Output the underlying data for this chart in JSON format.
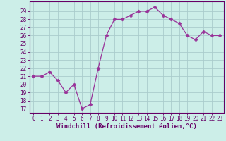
{
  "x": [
    0,
    1,
    2,
    3,
    4,
    5,
    6,
    7,
    8,
    9,
    10,
    11,
    12,
    13,
    14,
    15,
    16,
    17,
    18,
    19,
    20,
    21,
    22,
    23
  ],
  "y": [
    21,
    21,
    21.5,
    20.5,
    19,
    20,
    17,
    17.5,
    22,
    26,
    28,
    28,
    28.5,
    29,
    29,
    29.5,
    28.5,
    28,
    27.5,
    26,
    25.5,
    26.5,
    26,
    26
  ],
  "line_color": "#993399",
  "marker": "D",
  "marker_size": 2.5,
  "bg_color": "#cceee8",
  "grid_color": "#aacccc",
  "xlabel": "Windchill (Refroidissement éolien,°C)",
  "xlabel_fontsize": 6.5,
  "yticks": [
    17,
    18,
    19,
    20,
    21,
    22,
    23,
    24,
    25,
    26,
    27,
    28,
    29
  ],
  "xticks": [
    0,
    1,
    2,
    3,
    4,
    5,
    6,
    7,
    8,
    9,
    10,
    11,
    12,
    13,
    14,
    15,
    16,
    17,
    18,
    19,
    20,
    21,
    22,
    23
  ],
  "ylim": [
    16.5,
    30.2
  ],
  "xlim": [
    -0.5,
    23.5
  ],
  "tick_fontsize": 5.5,
  "axis_color": "#660066",
  "spine_color": "#660066",
  "line_width": 0.9
}
